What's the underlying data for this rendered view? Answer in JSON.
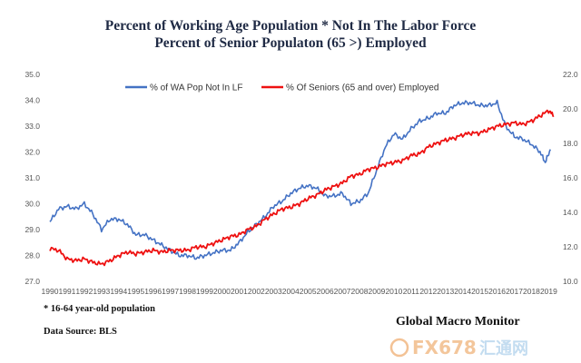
{
  "chart_data": {
    "type": "line",
    "title": "Percent of Working Age Population  * Not In The Labor Force",
    "subtitle": "Percent of Senior Populaton (65 >) Employed",
    "x_ticks": [
      "1990",
      "1991",
      "1992",
      "1993",
      "1994",
      "1995",
      "1996",
      "1997",
      "1998",
      "1999",
      "2000",
      "2001",
      "2002",
      "2003",
      "2004",
      "2005",
      "2006",
      "2007",
      "2008",
      "2009",
      "2010",
      "2011",
      "2012",
      "2013",
      "2014",
      "2015",
      "2016",
      "2017",
      "2018",
      "2019"
    ],
    "xlim": [
      1990,
      2019.4
    ],
    "y_left": {
      "ticks": [
        "27.0",
        "28.0",
        "29.0",
        "30.0",
        "31.0",
        "32.0",
        "33.0",
        "34.0",
        "35.0"
      ],
      "lim": [
        27,
        35
      ]
    },
    "y_right": {
      "ticks": [
        "10.0",
        "12.0",
        "14.0",
        "16.0",
        "18.0",
        "20.0",
        "22.0"
      ],
      "lim": [
        10,
        22
      ]
    },
    "legend_position": "top-center",
    "grid": false,
    "series": [
      {
        "name": "% of WA Pop Not In LF",
        "axis": "left",
        "color": "#4472c4",
        "x": [
          1990.0,
          1990.5,
          1991.0,
          1991.5,
          1992.0,
          1992.5,
          1993.0,
          1993.5,
          1994.0,
          1994.5,
          1995.0,
          1995.5,
          1996.0,
          1996.5,
          1997.0,
          1997.5,
          1998.0,
          1998.5,
          1999.0,
          1999.5,
          2000.0,
          2000.5,
          2001.0,
          2001.5,
          2002.0,
          2002.5,
          2003.0,
          2003.5,
          2004.0,
          2004.5,
          2005.0,
          2005.5,
          2006.0,
          2006.5,
          2007.0,
          2007.5,
          2008.0,
          2008.5,
          2009.0,
          2009.5,
          2010.0,
          2010.5,
          2011.0,
          2011.5,
          2012.0,
          2012.5,
          2013.0,
          2013.5,
          2014.0,
          2014.5,
          2015.0,
          2015.5,
          2016.0,
          2016.5,
          2017.0,
          2017.5,
          2018.0,
          2018.5,
          2018.8,
          2019.1
        ],
        "values": [
          29.3,
          29.8,
          29.9,
          29.8,
          30.0,
          29.6,
          29.0,
          29.4,
          29.4,
          29.2,
          28.8,
          28.8,
          28.6,
          28.4,
          28.2,
          28.0,
          28.0,
          27.9,
          28.0,
          28.1,
          28.2,
          28.2,
          28.5,
          28.9,
          29.2,
          29.5,
          29.9,
          30.1,
          30.4,
          30.6,
          30.7,
          30.6,
          30.3,
          30.3,
          30.4,
          30.0,
          30.1,
          30.4,
          31.3,
          32.2,
          32.7,
          32.5,
          32.9,
          33.2,
          33.3,
          33.5,
          33.5,
          33.8,
          33.9,
          33.9,
          33.8,
          33.8,
          33.9,
          33.0,
          32.6,
          32.5,
          32.3,
          32.0,
          31.6,
          32.1
        ]
      },
      {
        "name": "% Of Seniors (65 and over) Employed",
        "axis": "right",
        "color": "#ee1111",
        "x": [
          1990.0,
          1990.5,
          1991.0,
          1991.5,
          1992.0,
          1992.5,
          1993.0,
          1993.5,
          1994.0,
          1994.5,
          1995.0,
          1995.5,
          1996.0,
          1996.5,
          1997.0,
          1997.5,
          1998.0,
          1998.5,
          1999.0,
          1999.5,
          2000.0,
          2000.5,
          2001.0,
          2001.5,
          2002.0,
          2002.5,
          2003.0,
          2003.5,
          2004.0,
          2004.5,
          2005.0,
          2005.5,
          2006.0,
          2006.5,
          2007.0,
          2007.5,
          2008.0,
          2008.5,
          2009.0,
          2009.5,
          2010.0,
          2010.5,
          2011.0,
          2011.5,
          2012.0,
          2012.5,
          2013.0,
          2013.5,
          2014.0,
          2014.5,
          2015.0,
          2015.5,
          2016.0,
          2016.5,
          2017.0,
          2017.5,
          2018.0,
          2018.5,
          2019.0,
          2019.3
        ],
        "values": [
          11.9,
          11.8,
          11.3,
          11.2,
          11.3,
          11.1,
          11.0,
          11.2,
          11.5,
          11.7,
          11.6,
          11.7,
          11.8,
          11.7,
          11.8,
          11.8,
          11.8,
          12.0,
          12.0,
          12.2,
          12.4,
          12.6,
          12.7,
          13.0,
          13.2,
          13.6,
          13.9,
          14.2,
          14.3,
          14.5,
          14.8,
          15.0,
          15.3,
          15.5,
          15.7,
          16.1,
          16.2,
          16.5,
          16.6,
          16.8,
          16.9,
          17.0,
          17.3,
          17.4,
          17.8,
          18.0,
          18.2,
          18.3,
          18.5,
          18.6,
          18.6,
          18.8,
          19.0,
          19.1,
          19.2,
          19.1,
          19.3,
          19.6,
          19.9,
          19.6
        ]
      }
    ]
  },
  "notes": {
    "footnote": "* 16-64 year-old population",
    "source": "Data Source:   BLS",
    "brand": "Global Macro Monitor",
    "watermark_fx": "FX678",
    "watermark_cn": "汇通网"
  }
}
